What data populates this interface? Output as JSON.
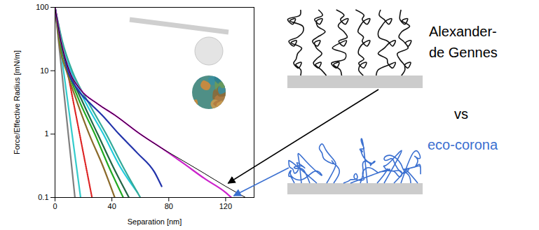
{
  "chart_data": {
    "type": "line",
    "x_label": "Separation [nm]",
    "y_label": "Force/Effective Radius [mN/m]",
    "log": "y",
    "grid": false,
    "xlim": [
      0,
      140
    ],
    "ylim": [
      0.1,
      100
    ],
    "xticks": [
      0,
      40,
      80,
      120
    ],
    "yticks": [
      0.1,
      1,
      10,
      100
    ],
    "series": [
      {
        "color": "#7f7f7f",
        "x": [
          0,
          2,
          4,
          6,
          8,
          10,
          12,
          14
        ],
        "values": [
          100,
          37.3,
          13.9,
          5.18,
          1.93,
          0.72,
          0.27,
          0.1
        ]
      },
      {
        "color": "#33cccc",
        "x": [
          0,
          3,
          6,
          9,
          12,
          15,
          18
        ],
        "values": [
          100,
          31.6,
          10,
          3.16,
          1,
          0.316,
          0.1
        ]
      },
      {
        "color": "#dd2222",
        "line_style": "dotted",
        "x": [
          0,
          4,
          8,
          12,
          16,
          20,
          24,
          26
        ],
        "values": [
          100,
          34.5,
          11.9,
          4.1,
          1.42,
          0.49,
          0.17,
          0.1
        ]
      },
      {
        "color": "#8a6a2a",
        "x": [
          0,
          4,
          8,
          16,
          24,
          34,
          42
        ],
        "values": [
          100,
          20,
          10,
          3,
          1,
          0.3,
          0.1
        ]
      },
      {
        "color": "#22aa22",
        "x": [
          0,
          5,
          9,
          18,
          28,
          38,
          48
        ],
        "values": [
          100,
          20,
          10,
          3,
          1,
          0.3,
          0.1
        ]
      },
      {
        "color": "#226644",
        "x": [
          0,
          5,
          10,
          20,
          30,
          41,
          52
        ],
        "values": [
          100,
          25,
          10,
          3,
          1,
          0.3,
          0.1
        ]
      },
      {
        "color": "#22ccdd",
        "x": [
          0,
          5,
          11,
          22,
          34,
          46,
          58
        ],
        "values": [
          100,
          25,
          10,
          3,
          1,
          0.3,
          0.12
        ]
      },
      {
        "color": "#33aa99",
        "x": [
          0,
          5,
          12,
          24,
          36,
          48,
          60
        ],
        "values": [
          100,
          30,
          10,
          3,
          1,
          0.3,
          0.1
        ]
      },
      {
        "color": "#2233aa",
        "x": [
          0,
          4,
          9,
          16,
          25,
          33,
          45,
          58,
          70,
          75
        ],
        "values": [
          100,
          30,
          10,
          5,
          3,
          2,
          1,
          0.5,
          0.25,
          0.15
        ]
      },
      {
        "color": "#cc22cc",
        "x": [
          0,
          4,
          10,
          18,
          30,
          42,
          60,
          75,
          90,
          105,
          120,
          124
        ],
        "values": [
          100,
          30,
          10,
          5,
          3,
          2,
          1,
          0.6,
          0.35,
          0.2,
          0.12,
          0.1
        ]
      },
      {
        "color": "#000000",
        "x": [
          0,
          4,
          10,
          18,
          30,
          42,
          60,
          75,
          90,
          105,
          120,
          134
        ],
        "values": [
          100,
          30,
          10,
          5,
          3,
          2,
          1,
          0.6,
          0.38,
          0.24,
          0.15,
          0.1
        ]
      }
    ],
    "annotations": [
      {
        "lines": [
          "Alexander-",
          "de Gennes"
        ],
        "color": "#000000"
      },
      {
        "lines": [
          "vs"
        ],
        "color": "#000000"
      },
      {
        "lines": [
          "eco-corona"
        ],
        "color": "#3a6fd0"
      }
    ]
  }
}
